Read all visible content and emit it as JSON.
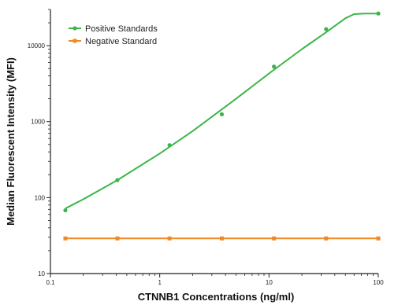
{
  "chart_data": {
    "type": "line",
    "xscale": "log",
    "yscale": "log",
    "xlim": [
      0.1,
      100
    ],
    "ylim": [
      10,
      30000
    ],
    "xlabel": "CTNNB1 Concentrations (ng/ml)",
    "ylabel": "Median Fluorescent Intensity (MFI)",
    "x_ticks": [
      {
        "value": 0.1,
        "label": "0.1"
      },
      {
        "value": 1,
        "label": "1"
      },
      {
        "value": 10,
        "label": "10"
      },
      {
        "value": 100,
        "label": "100"
      }
    ],
    "y_ticks": [
      {
        "value": 10,
        "label": "10"
      },
      {
        "value": 100,
        "label": "100"
      },
      {
        "value": 1000,
        "label": "1000"
      },
      {
        "value": 10000,
        "label": "10000"
      }
    ],
    "legend": "top-left",
    "grid": false,
    "series": [
      {
        "name": "Positive Standards",
        "color": "#3cb54a",
        "marker": "circle",
        "points": [
          {
            "x": 0.137,
            "y": 68
          },
          {
            "x": 0.41,
            "y": 170
          },
          {
            "x": 1.23,
            "y": 490
          },
          {
            "x": 3.7,
            "y": 1250
          },
          {
            "x": 11.1,
            "y": 5300
          },
          {
            "x": 33.3,
            "y": 16500
          },
          {
            "x": 100,
            "y": 26500
          }
        ],
        "fit_curve": [
          {
            "x": 0.137,
            "y": 72
          },
          {
            "x": 0.2,
            "y": 95
          },
          {
            "x": 0.41,
            "y": 170
          },
          {
            "x": 1.0,
            "y": 380
          },
          {
            "x": 2.0,
            "y": 750
          },
          {
            "x": 5.0,
            "y": 2000
          },
          {
            "x": 10.0,
            "y": 4300
          },
          {
            "x": 20.0,
            "y": 9000
          },
          {
            "x": 33.3,
            "y": 15000
          },
          {
            "x": 50.0,
            "y": 23000
          },
          {
            "x": 60.0,
            "y": 26000
          },
          {
            "x": 75.0,
            "y": 26500
          },
          {
            "x": 100,
            "y": 26500
          }
        ]
      },
      {
        "name": "Negative Standard",
        "color": "#f08a24",
        "marker": "square",
        "points": [
          {
            "x": 0.137,
            "y": 29
          },
          {
            "x": 0.41,
            "y": 29
          },
          {
            "x": 1.23,
            "y": 29
          },
          {
            "x": 3.7,
            "y": 29
          },
          {
            "x": 11.1,
            "y": 29
          },
          {
            "x": 33.3,
            "y": 29
          },
          {
            "x": 100,
            "y": 29
          }
        ]
      }
    ]
  }
}
